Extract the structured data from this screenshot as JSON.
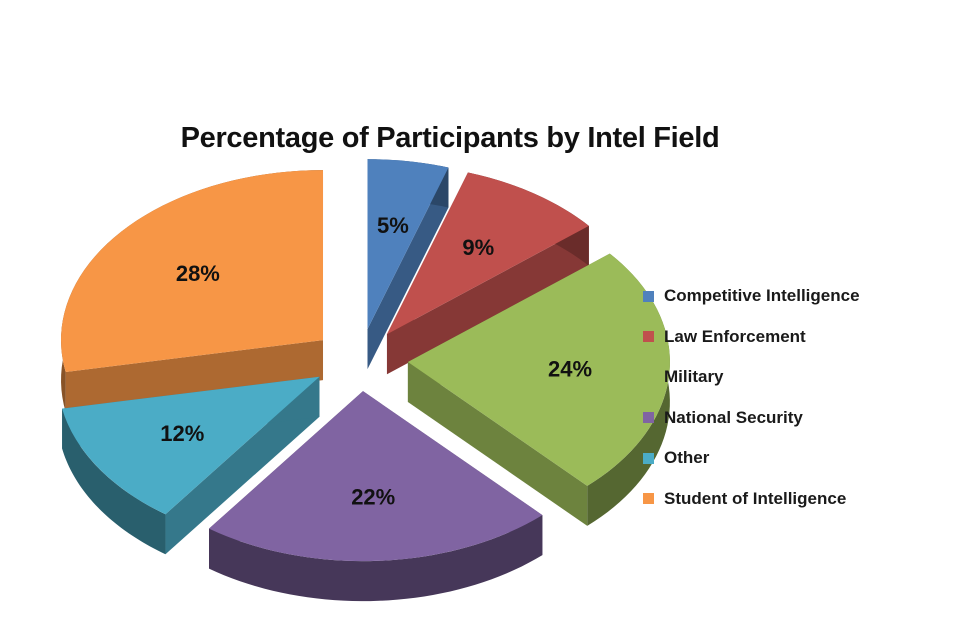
{
  "chart_data": {
    "type": "pie",
    "title": "Percentage of Participants by Intel Field",
    "categories": [
      "Competitive Intelligence",
      "Law Enforcement",
      "Military",
      "National Security",
      "Other",
      "Student of Intelligence"
    ],
    "values": [
      5,
      9,
      24,
      22,
      12,
      28
    ],
    "labels": [
      "5%",
      "9%",
      "24%",
      "22%",
      "12%",
      "28%"
    ],
    "colors": [
      "#4F81BD",
      "#C0504D",
      "#9BBB59",
      "#8064A2",
      "#4BACC6",
      "#F79646"
    ],
    "style": "3d-exploded",
    "legend": {
      "position": "right"
    }
  }
}
